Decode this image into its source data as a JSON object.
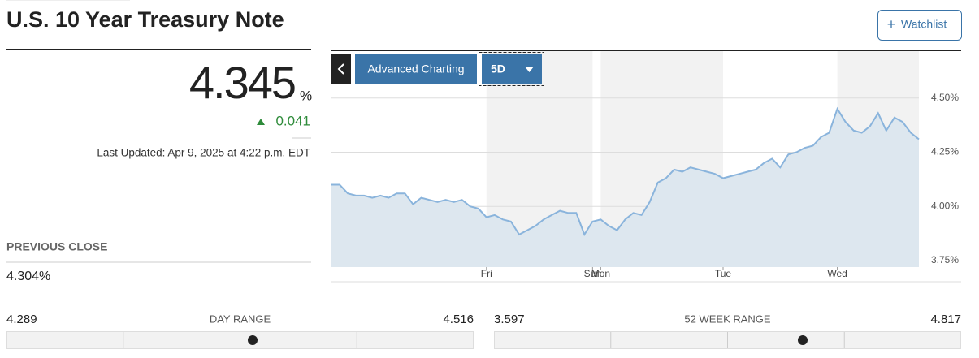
{
  "header": {
    "title": "U.S. 10 Year Treasury Note",
    "watchlist": "Watchlist"
  },
  "quote": {
    "price": 4.345,
    "unit": "%",
    "change": 0.041,
    "last_updated": "Last Updated: Apr 9, 2025 at 4:22 p.m. EDT"
  },
  "previous_close": {
    "label": "PREVIOUS CLOSE",
    "value": "4.304%"
  },
  "ranges": [
    {
      "low": 4.289,
      "label": "DAY RANGE",
      "high": 4.516
    },
    {
      "low": 3.597,
      "label": "52 WEEK RANGE",
      "high": 4.817
    }
  ],
  "controls": {
    "advanced": "Advanced Charting",
    "period": "5D"
  },
  "chart_data": {
    "type": "area",
    "color": "#8ab4dc",
    "fill": "#dde7ef",
    "grid": true,
    "ylim": [
      3.72,
      4.72
    ],
    "yticks": [
      {
        "value": 3.75,
        "label": "3.75%"
      },
      {
        "value": 4.0,
        "label": "4.00%"
      },
      {
        "value": 4.25,
        "label": "4.25%"
      },
      {
        "value": 4.5,
        "label": "4.50%"
      }
    ],
    "categories": [
      null,
      null,
      null,
      null,
      null,
      null,
      null,
      null,
      null,
      null,
      null,
      null,
      null,
      null,
      null,
      null,
      null,
      null,
      null,
      "Fri",
      null,
      null,
      null,
      null,
      null,
      null,
      null,
      null,
      null,
      null,
      null,
      null,
      "Sun",
      "Mon",
      null,
      null,
      null,
      null,
      null,
      null,
      null,
      null,
      null,
      null,
      null,
      null,
      null,
      null,
      "Tue",
      null,
      null,
      null,
      null,
      null,
      null,
      null,
      null,
      null,
      null,
      null,
      null,
      null,
      "Wed",
      null,
      null,
      null,
      null,
      null,
      null,
      null,
      null,
      null,
      null
    ],
    "values": [
      4.1,
      4.1,
      4.06,
      4.05,
      4.05,
      4.04,
      4.05,
      4.04,
      4.06,
      4.06,
      4.01,
      4.04,
      4.03,
      4.02,
      4.03,
      4.02,
      4.03,
      4.0,
      3.99,
      3.95,
      3.96,
      3.94,
      3.93,
      3.87,
      3.89,
      3.91,
      3.94,
      3.96,
      3.98,
      3.97,
      3.97,
      3.87,
      3.93,
      3.94,
      3.91,
      3.89,
      3.94,
      3.97,
      3.96,
      4.02,
      4.11,
      4.13,
      4.17,
      4.16,
      4.18,
      4.17,
      4.16,
      4.15,
      4.13,
      4.14,
      4.15,
      4.16,
      4.17,
      4.2,
      4.22,
      4.18,
      4.24,
      4.25,
      4.27,
      4.28,
      4.32,
      4.34,
      4.45,
      4.39,
      4.35,
      4.34,
      4.37,
      4.43,
      4.35,
      4.41,
      4.39,
      4.34,
      4.31
    ]
  }
}
